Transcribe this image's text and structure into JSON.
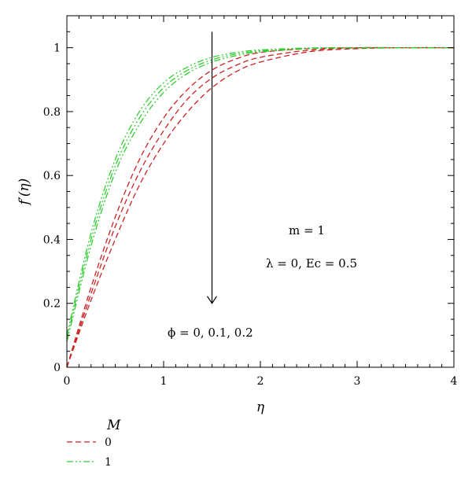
{
  "chart_data": {
    "type": "line",
    "xlabel": "η",
    "ylabel": "f′(η)",
    "xlim": [
      0,
      4
    ],
    "ylim": [
      0,
      1.1
    ],
    "x_ticks": [
      0,
      1,
      2,
      3,
      4
    ],
    "y_ticks": [
      0,
      0.2,
      0.4,
      0.6,
      0.8,
      1
    ],
    "x_tick_labels": [
      "0",
      "1",
      "2",
      "3",
      "4"
    ],
    "y_tick_labels": [
      "0",
      "0.2",
      "0.4",
      "0.6",
      "0.8",
      "1"
    ],
    "grid": false,
    "annotations": {
      "m": "m = 1",
      "params": "λ = 0, Ec = 0.5",
      "phi": "ϕ = 0, 0.1, 0.2"
    },
    "arrow": {
      "from": [
        1.5,
        1.05
      ],
      "to": [
        1.5,
        0.2
      ]
    },
    "legend": {
      "title": "M",
      "position": "below-left",
      "entries": [
        {
          "label": "0",
          "color": "#cc2222",
          "dash": "dashed"
        },
        {
          "label": "1",
          "color": "#33cc33",
          "dash": "dash-dot-dot"
        }
      ]
    },
    "series": [
      {
        "group": "0",
        "color": "#cc2222",
        "dash": "dashed",
        "x": [
          0,
          0.25,
          0.5,
          0.75,
          1.0,
          1.25,
          1.5,
          1.75,
          2.0,
          2.5,
          3.0,
          3.5,
          4.0
        ],
        "y": [
          0,
          0.25,
          0.47,
          0.65,
          0.78,
          0.87,
          0.93,
          0.965,
          0.985,
          0.997,
          1.0,
          1.0,
          1.0
        ]
      },
      {
        "group": "0",
        "color": "#cc2222",
        "dash": "dashed",
        "x": [
          0,
          0.25,
          0.5,
          0.75,
          1.0,
          1.25,
          1.5,
          1.75,
          2.0,
          2.5,
          3.0,
          3.5,
          4.0
        ],
        "y": [
          0,
          0.23,
          0.44,
          0.61,
          0.74,
          0.84,
          0.905,
          0.945,
          0.97,
          0.992,
          0.999,
          1.0,
          1.0
        ]
      },
      {
        "group": "0",
        "color": "#cc2222",
        "dash": "dashed",
        "x": [
          0,
          0.25,
          0.5,
          0.75,
          1.0,
          1.25,
          1.5,
          1.75,
          2.0,
          2.5,
          3.0,
          3.5,
          4.0
        ],
        "y": [
          0,
          0.21,
          0.4,
          0.57,
          0.7,
          0.8,
          0.875,
          0.925,
          0.955,
          0.987,
          0.997,
          1.0,
          1.0
        ]
      },
      {
        "group": "1",
        "color": "#33cc33",
        "dash": "dash-dot-dot",
        "x": [
          0,
          0.25,
          0.5,
          0.75,
          1.0,
          1.25,
          1.5,
          1.75,
          2.0,
          2.5,
          3.0,
          3.5,
          4.0
        ],
        "y": [
          0.1,
          0.42,
          0.65,
          0.8,
          0.89,
          0.94,
          0.97,
          0.985,
          0.993,
          0.999,
          1.0,
          1.0,
          1.0
        ]
      },
      {
        "group": "1",
        "color": "#33cc33",
        "dash": "dash-dot-dot",
        "x": [
          0,
          0.25,
          0.5,
          0.75,
          1.0,
          1.25,
          1.5,
          1.75,
          2.0,
          2.5,
          3.0,
          3.5,
          4.0
        ],
        "y": [
          0.09,
          0.4,
          0.63,
          0.78,
          0.875,
          0.93,
          0.962,
          0.98,
          0.99,
          0.998,
          1.0,
          1.0,
          1.0
        ]
      },
      {
        "group": "1",
        "color": "#33cc33",
        "dash": "dash-dot-dot",
        "x": [
          0,
          0.25,
          0.5,
          0.75,
          1.0,
          1.25,
          1.5,
          1.75,
          2.0,
          2.5,
          3.0,
          3.5,
          4.0
        ],
        "y": [
          0.08,
          0.38,
          0.61,
          0.76,
          0.86,
          0.92,
          0.955,
          0.975,
          0.987,
          0.997,
          1.0,
          1.0,
          1.0
        ]
      }
    ]
  }
}
